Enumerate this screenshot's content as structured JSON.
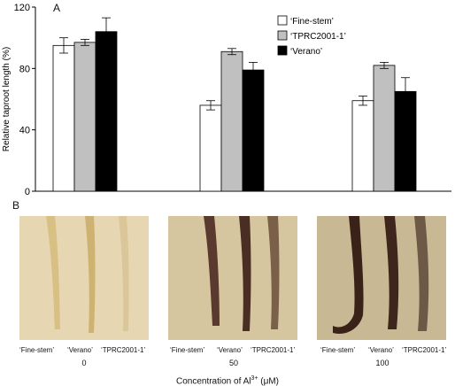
{
  "panel_a": {
    "label": "A",
    "chart_data": {
      "type": "bar",
      "ylabel": "Relative taproot length (%)",
      "ylim": [
        0,
        120
      ],
      "yticks": [
        0,
        40,
        80,
        120
      ],
      "categories": [
        "0",
        "50",
        "100"
      ],
      "series": [
        {
          "name": "‘Fine-stem’",
          "color": "#ffffff",
          "values": [
            95,
            56,
            59
          ],
          "errors": [
            5,
            3,
            3
          ]
        },
        {
          "name": "‘TPRC2001-1’",
          "color": "#c0c0c0",
          "values": [
            97,
            91,
            82
          ],
          "errors": [
            2,
            2,
            2
          ]
        },
        {
          "name": "‘Verano’",
          "color": "#000000",
          "values": [
            104,
            79,
            65
          ],
          "errors": [
            9,
            5,
            9
          ]
        }
      ],
      "legend_position": "top-right",
      "grid": false
    }
  },
  "panel_b": {
    "label": "B",
    "groups": [
      {
        "concentration": "0",
        "labels": [
          "‘Fine-stem’",
          "‘Verano’",
          "‘TPRC2001-1’"
        ],
        "tint": "#e9dcb9"
      },
      {
        "concentration": "50",
        "labels": [
          "‘Fine-stem’",
          "‘Verano’",
          "‘TPRC2001-1’"
        ],
        "tint": "#d9c9a3"
      },
      {
        "concentration": "100",
        "labels": [
          "‘Fine-stem’",
          "‘Verano’",
          "‘TPRC2001-1’"
        ],
        "tint": "#cbbb97"
      }
    ],
    "x_title_prefix": "Concentration of Al",
    "x_title_superscript": "3+",
    "x_title_unit": " (μM)"
  }
}
